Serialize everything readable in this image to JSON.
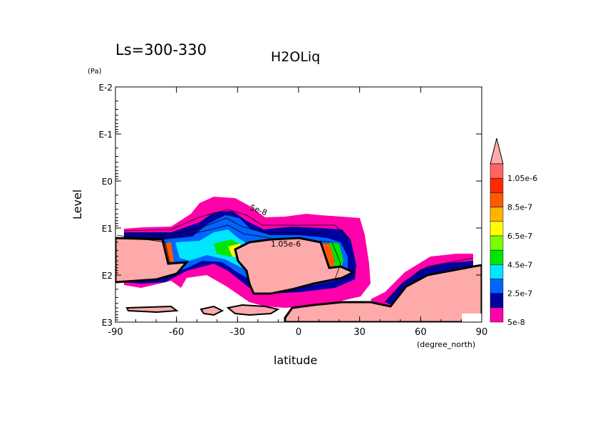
{
  "chart_data": {
    "type": "heatmap",
    "title": "H2OLiq",
    "subtitle": "Ls=300-330",
    "xlabel": "latitude",
    "xunits": "(degree_north)",
    "ylabel": "Level",
    "yunits": "(Pa)",
    "xlim": [
      -90,
      90
    ],
    "ylim": [
      1000,
      0.01
    ],
    "yscale": "log",
    "xticks": [
      "-90",
      "-60",
      "-30",
      "0",
      "30",
      "60",
      "90"
    ],
    "xtick_values": [
      -90,
      -60,
      -30,
      0,
      30,
      60,
      90
    ],
    "yticks": [
      "E-2",
      "E-1",
      "E0",
      "E1",
      "E2",
      "E3"
    ],
    "ytick_exponents": [
      -2,
      -1,
      0,
      1,
      2,
      3
    ],
    "colorbar": {
      "levels": [
        5e-08,
        1.5e-07,
        2.5e-07,
        3.5e-07,
        4.5e-07,
        5.5e-07,
        6.5e-07,
        7.5e-07,
        8.5e-07,
        9.5e-07,
        1.05e-06
      ],
      "colors": [
        "#ff00aa",
        "#0000a0",
        "#0064ff",
        "#00e6ff",
        "#00e600",
        "#78ff00",
        "#ffff00",
        "#ffb400",
        "#ff5a00",
        "#ff2800",
        "#ff6464"
      ],
      "labels": [
        "5e-8",
        "2.5e-7",
        "4.5e-7",
        "6.5e-7",
        "8.5e-7",
        "1.05e-6"
      ],
      "extend": "max"
    },
    "contour_labels": [
      "5e-8",
      "1.05e-6"
    ],
    "masked_color": "#ffaaaa"
  }
}
